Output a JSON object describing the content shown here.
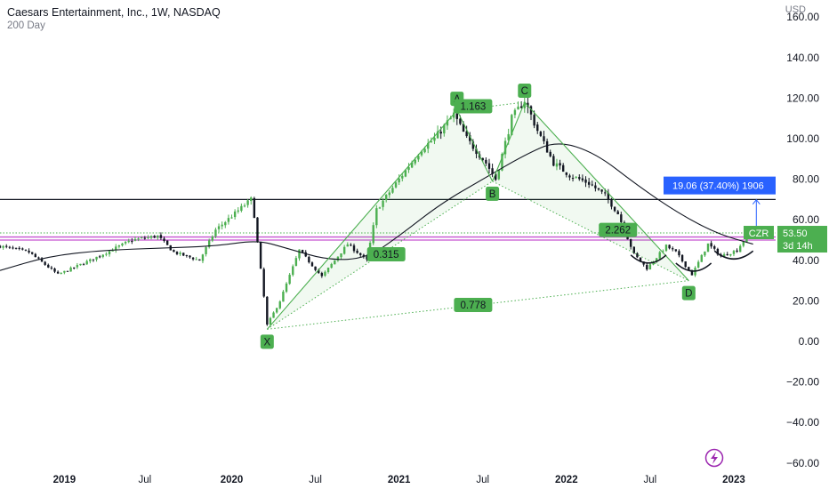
{
  "header": {
    "title": "Caesars Entertainment, Inc., 1W, NASDAQ",
    "subtitle": "200 Day",
    "currency": "USD"
  },
  "colors": {
    "up": "#4caf50",
    "down": "#131722",
    "pattern_green": "#4caf50",
    "measure_blue": "#2962ff",
    "purple_line": "#c653d1",
    "price_tag": "#4caf50",
    "grid_text": "#131722"
  },
  "chart_data": {
    "type": "candlestick",
    "yaxis": {
      "ticks": [
        -60,
        -40,
        -20,
        0,
        20,
        40,
        60,
        80,
        100,
        120,
        140,
        160
      ],
      "tick_labels": [
        "−60.00",
        "−40.00",
        "−20.00",
        "0.00",
        "20.00",
        "40.00",
        "60.00",
        "80.00",
        "100.00",
        "120.00",
        "140.00",
        "160.00"
      ],
      "range": [
        -62,
        165
      ]
    },
    "xaxis": {
      "range": [
        "2018-08-20",
        "2023-04-03"
      ],
      "ticks": [
        {
          "date": "2019-01-07",
          "label": "2019",
          "year": true
        },
        {
          "date": "2019-07-01",
          "label": "Jul",
          "year": false
        },
        {
          "date": "2020-01-06",
          "label": "2020",
          "year": true
        },
        {
          "date": "2020-07-06",
          "label": "Jul",
          "year": false
        },
        {
          "date": "2021-01-04",
          "label": "2021",
          "year": true
        },
        {
          "date": "2021-07-05",
          "label": "Jul",
          "year": false
        },
        {
          "date": "2022-01-03",
          "label": "2022",
          "year": true
        },
        {
          "date": "2022-07-04",
          "label": "Jul",
          "year": false
        },
        {
          "date": "2023-01-02",
          "label": "2023",
          "year": true
        }
      ]
    },
    "price_keyframes": [
      [
        "2018-08-20",
        47
      ],
      [
        "2018-10-22",
        44
      ],
      [
        "2018-12-24",
        33
      ],
      [
        "2019-03-04",
        40
      ],
      [
        "2019-06-03",
        50
      ],
      [
        "2019-07-29",
        52
      ],
      [
        "2019-09-02",
        44
      ],
      [
        "2019-10-28",
        40
      ],
      [
        "2019-12-02",
        55
      ],
      [
        "2020-02-17",
        70
      ],
      [
        "2020-02-24",
        62
      ],
      [
        "2020-03-16",
        22
      ],
      [
        "2020-03-23",
        8
      ],
      [
        "2020-04-20",
        20
      ],
      [
        "2020-06-01",
        45
      ],
      [
        "2020-07-20",
        32
      ],
      [
        "2020-09-14",
        48
      ],
      [
        "2020-10-26",
        40
      ],
      [
        "2020-11-16",
        65
      ],
      [
        "2021-01-04",
        80
      ],
      [
        "2021-02-22",
        95
      ],
      [
        "2021-03-22",
        100
      ],
      [
        "2021-05-03",
        112
      ],
      [
        "2021-05-31",
        100
      ],
      [
        "2021-07-12",
        88
      ],
      [
        "2021-08-02",
        80
      ],
      [
        "2021-09-06",
        110
      ],
      [
        "2021-10-04",
        119
      ],
      [
        "2021-11-01",
        104
      ],
      [
        "2021-12-06",
        88
      ],
      [
        "2022-01-10",
        82
      ],
      [
        "2022-02-21",
        78
      ],
      [
        "2022-03-28",
        72
      ],
      [
        "2022-04-25",
        63
      ],
      [
        "2022-05-30",
        43
      ],
      [
        "2022-06-27",
        36
      ],
      [
        "2022-08-08",
        47
      ],
      [
        "2022-08-29",
        44
      ],
      [
        "2022-10-03",
        33
      ],
      [
        "2022-11-07",
        48
      ],
      [
        "2022-12-05",
        42
      ],
      [
        "2023-01-09",
        45
      ],
      [
        "2023-01-30",
        52
      ],
      [
        "2023-02-13",
        54
      ]
    ],
    "moving_average": {
      "name": "200 Day",
      "points": [
        [
          "2018-08-20",
          35
        ],
        [
          "2018-12-03",
          42
        ],
        [
          "2019-04-01",
          45
        ],
        [
          "2019-08-05",
          46
        ],
        [
          "2019-12-02",
          47
        ],
        [
          "2020-03-02",
          50
        ],
        [
          "2020-05-04",
          46
        ],
        [
          "2020-08-03",
          40
        ],
        [
          "2020-10-26",
          41
        ],
        [
          "2021-01-04",
          52
        ],
        [
          "2021-04-05",
          68
        ],
        [
          "2021-07-05",
          80
        ],
        [
          "2021-10-04",
          92
        ],
        [
          "2021-12-13",
          99
        ],
        [
          "2022-03-07",
          93
        ],
        [
          "2022-06-06",
          77
        ],
        [
          "2022-09-05",
          63
        ],
        [
          "2022-11-28",
          53
        ],
        [
          "2023-02-13",
          48
        ]
      ]
    },
    "horizontal_lines": [
      {
        "value": 70,
        "color": "#131722"
      },
      {
        "value": 51.5,
        "color": "#c653d1"
      },
      {
        "value": 50,
        "color": "#c653d1"
      },
      {
        "value": 53.5,
        "color": "#4caf50",
        "dotted": true
      }
    ],
    "harmonic_pattern": {
      "points": [
        {
          "label": "X",
          "date": "2020-03-23",
          "value": 6
        },
        {
          "label": "A",
          "date": "2021-05-10",
          "value": 114
        },
        {
          "label": "B",
          "date": "2021-07-26",
          "value": 79
        },
        {
          "label": "C",
          "date": "2021-10-04",
          "value": 118
        },
        {
          "label": "D",
          "date": "2022-09-26",
          "value": 30
        }
      ],
      "ratios": [
        {
          "label": "0.315",
          "date": "2020-12-07",
          "value": 43
        },
        {
          "label": "1.163",
          "date": "2021-06-14",
          "value": 116
        },
        {
          "label": "2.262",
          "date": "2022-04-25",
          "value": 55
        },
        {
          "label": "0.778",
          "date": "2021-06-14",
          "value": 18
        }
      ]
    },
    "arcs": [
      {
        "from": "2022-05-23",
        "to": "2022-08-08",
        "value": 40
      },
      {
        "from": "2022-08-29",
        "to": "2022-11-14",
        "value": 36
      },
      {
        "from": "2022-11-21",
        "to": "2023-02-13",
        "value": 42
      }
    ],
    "measure": {
      "date": "2023-02-20",
      "from_value": 50.9,
      "to_value": 69.9,
      "label": "19.06 (37.40%) 1906"
    },
    "price_tag": {
      "symbol": "CZR",
      "last": "53.50",
      "countdown": "3d 14h",
      "value": 53.5
    }
  }
}
